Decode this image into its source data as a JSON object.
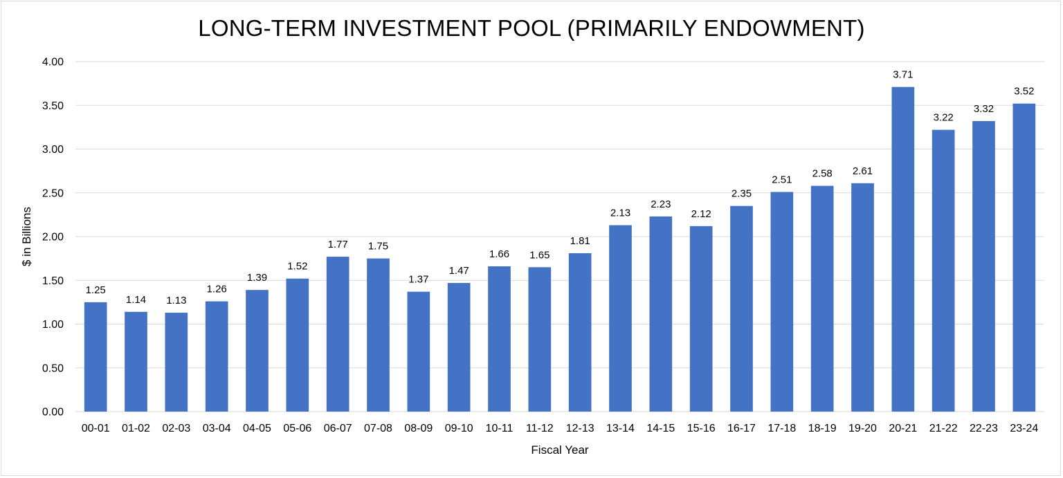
{
  "chart_data": {
    "type": "bar",
    "title": "LONG-TERM INVESTMENT POOL (PRIMARILY ENDOWMENT)",
    "xlabel": "Fiscal Year",
    "ylabel": "$ in Billions",
    "ylim": [
      0,
      4
    ],
    "ytick_values": [
      0,
      0.5,
      1,
      1.5,
      2,
      2.5,
      3,
      3.5,
      4
    ],
    "ytick_labels": [
      "0.00",
      "0.50",
      "1.00",
      "1.50",
      "2.00",
      "2.50",
      "3.00",
      "3.50",
      "4.00"
    ],
    "categories": [
      "00-01",
      "01-02",
      "02-03",
      "03-04",
      "04-05",
      "05-06",
      "06-07",
      "07-08",
      "08-09",
      "09-10",
      "10-11",
      "11-12",
      "12-13",
      "13-14",
      "14-15",
      "15-16",
      "16-17",
      "17-18",
      "18-19",
      "19-20",
      "20-21",
      "21-22",
      "22-23",
      "23-24"
    ],
    "values": [
      1.25,
      1.14,
      1.13,
      1.26,
      1.39,
      1.52,
      1.77,
      1.75,
      1.37,
      1.47,
      1.66,
      1.65,
      1.81,
      2.13,
      2.23,
      2.12,
      2.35,
      2.51,
      2.58,
      2.61,
      3.71,
      3.22,
      3.32,
      3.52
    ],
    "data_labels": [
      "1.25",
      "1.14",
      "1.13",
      "1.26",
      "1.39",
      "1.52",
      "1.77",
      "1.75",
      "1.37",
      "1.47",
      "1.66",
      "1.65",
      "1.81",
      "2.13",
      "2.23",
      "2.12",
      "2.35",
      "2.51",
      "2.58",
      "2.61",
      "3.71",
      "3.22",
      "3.32",
      "3.52"
    ],
    "bar_color": "#4472c4",
    "grid_color": "#d9d9d9",
    "grid": true,
    "legend": "none"
  }
}
